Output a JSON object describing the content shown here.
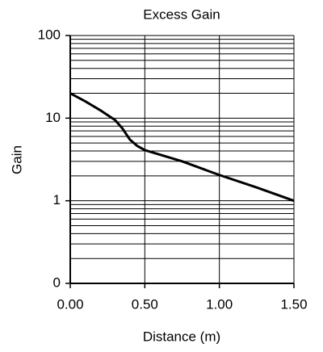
{
  "chart_data": {
    "type": "line",
    "title": "Excess Gain",
    "x_label": "Distance (m)",
    "y_label": "Gain",
    "x": [
      0,
      0.1,
      0.2,
      0.3,
      0.35,
      0.4,
      0.45,
      0.5,
      0.75,
      1.0,
      1.25,
      1.5
    ],
    "series": [
      {
        "name": "Gain",
        "color": "#000000",
        "values": [
          20,
          16,
          12.5,
          9.5,
          7.5,
          5.5,
          4.6,
          4.1,
          3,
          2.05,
          1.45,
          1
        ]
      }
    ],
    "xlim": [
      0,
      1.5
    ],
    "xticks": [
      {
        "value": 0,
        "label": "0.00"
      },
      {
        "value": 0.5,
        "label": "0.50"
      },
      {
        "value": 1.0,
        "label": "1.00"
      },
      {
        "value": 1.5,
        "label": "1.50"
      }
    ],
    "ylim": [
      0.1,
      100
    ],
    "y_scale": "log",
    "yticks": [
      {
        "value": 0.1,
        "label": "0"
      },
      1,
      10,
      100
    ],
    "yminorticks": [
      0.2,
      0.3,
      0.4,
      0.5,
      0.6,
      0.7,
      0.8,
      0.9,
      2,
      3,
      4,
      5,
      6,
      7,
      8,
      9,
      20,
      30,
      40,
      50,
      60,
      70,
      80,
      90
    ],
    "grid": true
  }
}
